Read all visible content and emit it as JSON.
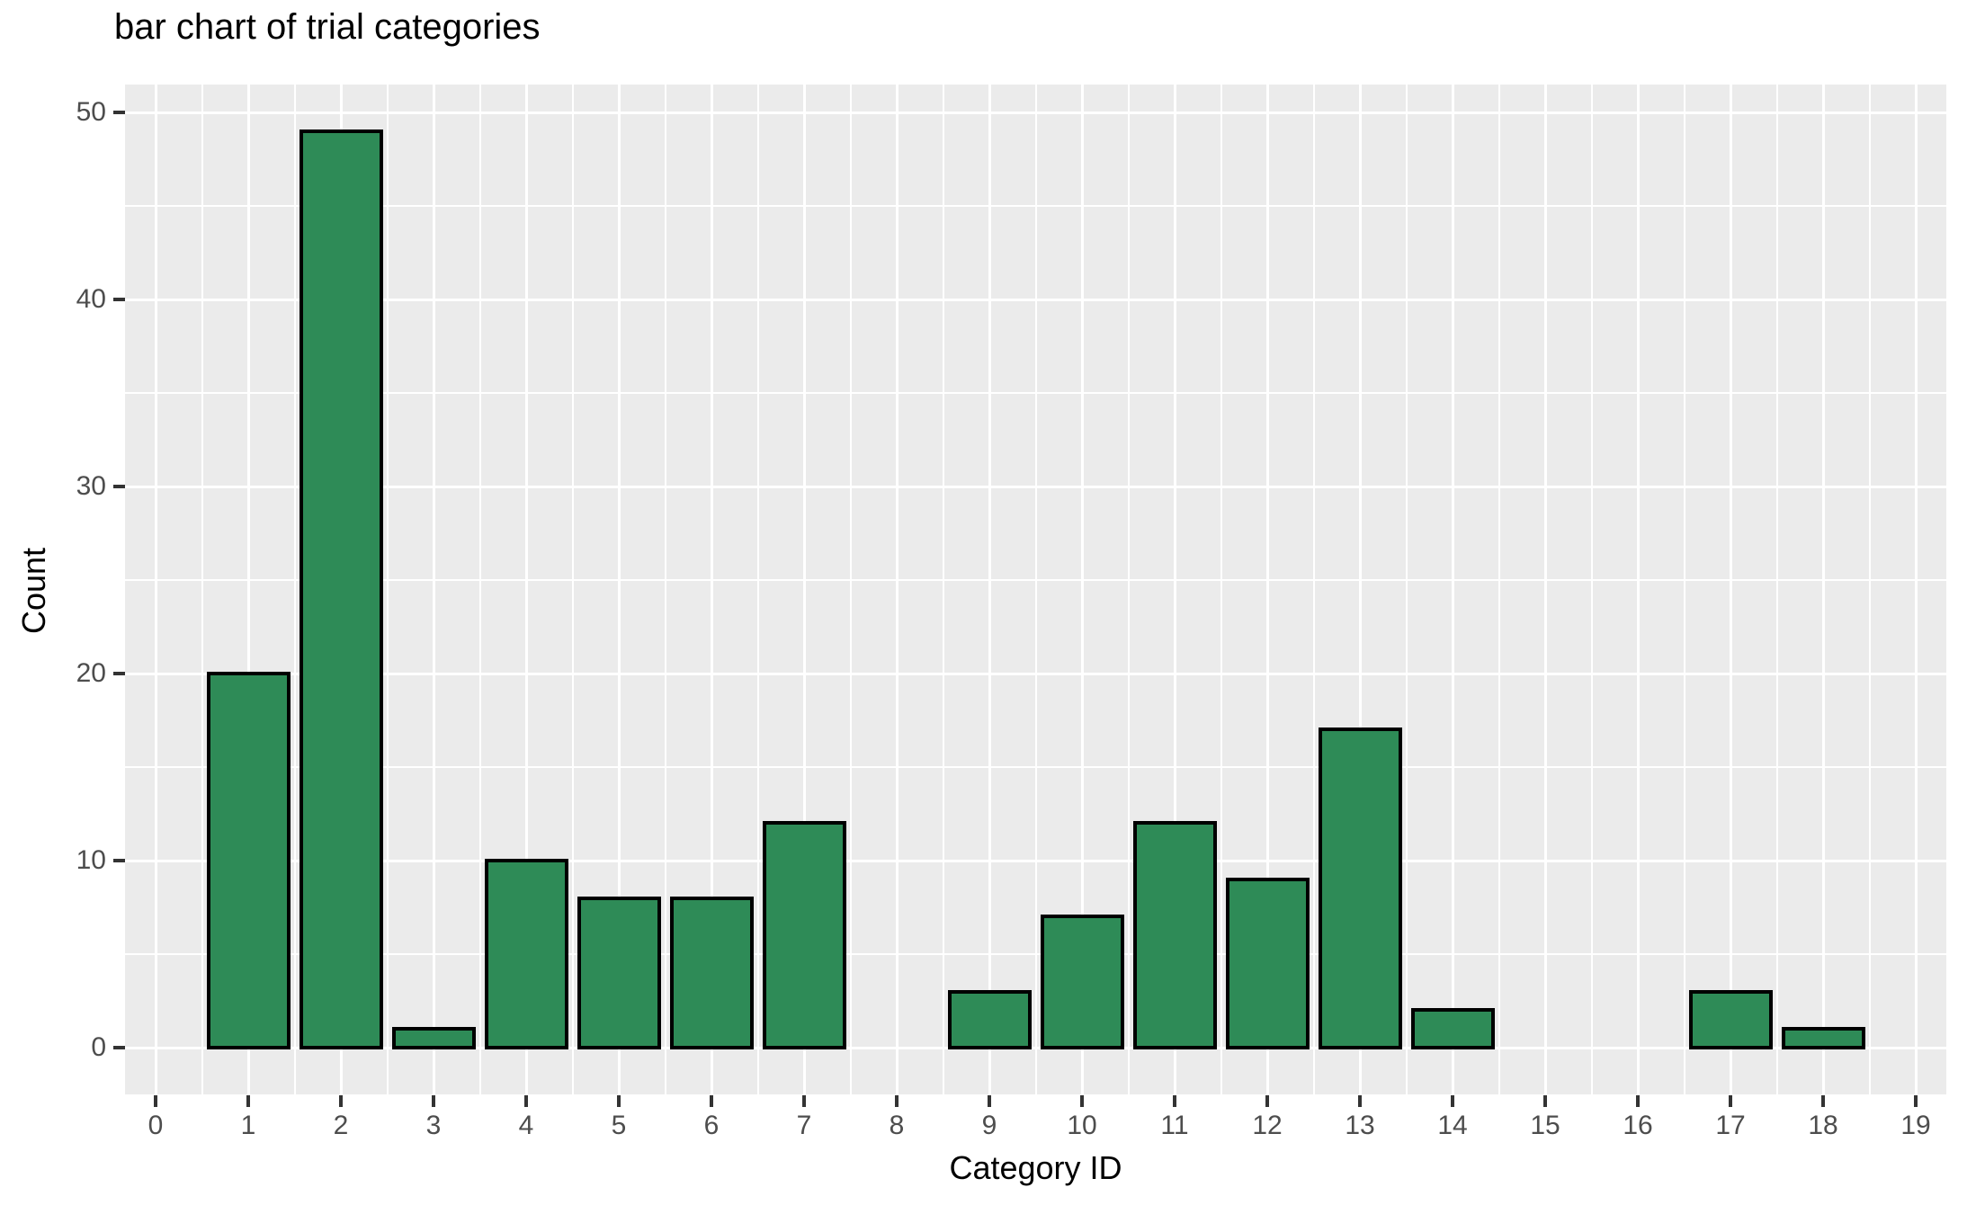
{
  "chart_data": {
    "type": "bar",
    "title": "bar chart of trial categories",
    "xlabel": "Category ID",
    "ylabel": "Count",
    "x_ticks": [
      0,
      1,
      2,
      3,
      4,
      5,
      6,
      7,
      8,
      9,
      10,
      11,
      12,
      13,
      14,
      15,
      16,
      17,
      18,
      19
    ],
    "y_ticks": [
      0,
      10,
      20,
      30,
      40,
      50
    ],
    "ylim": [
      0,
      50
    ],
    "grid": true,
    "legend_position": "none",
    "bars": [
      {
        "x": 1,
        "count": 20
      },
      {
        "x": 2,
        "count": 49
      },
      {
        "x": 3,
        "count": 1
      },
      {
        "x": 4,
        "count": 10
      },
      {
        "x": 5,
        "count": 8
      },
      {
        "x": 6,
        "count": 8
      },
      {
        "x": 7,
        "count": 12
      },
      {
        "x": 9,
        "count": 3
      },
      {
        "x": 10,
        "count": 7
      },
      {
        "x": 11,
        "count": 12
      },
      {
        "x": 12,
        "count": 9
      },
      {
        "x": 13,
        "count": 17
      },
      {
        "x": 14,
        "count": 2
      },
      {
        "x": 17,
        "count": 3
      },
      {
        "x": 18,
        "count": 1
      }
    ],
    "colors": {
      "bar_fill": "#2e8b57",
      "bar_stroke": "#000000",
      "panel_bg": "#ebebeb",
      "grid": "#ffffff",
      "axis_text": "#4d4d4d",
      "tick_mark": "#333333",
      "title_text": "#000000"
    }
  }
}
